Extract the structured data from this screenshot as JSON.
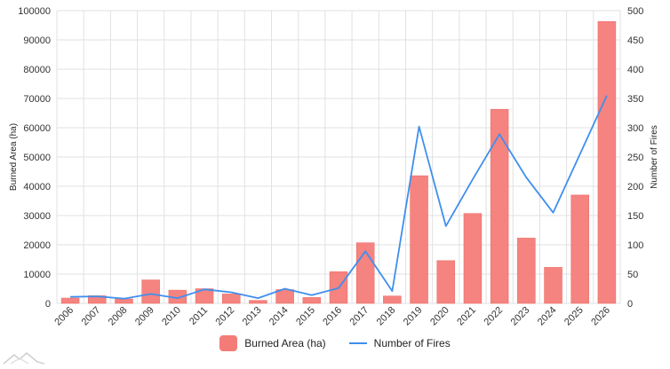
{
  "chart_data": {
    "type": "bar",
    "categories": [
      "2006",
      "2007",
      "2008",
      "2009",
      "2010",
      "2011",
      "2012",
      "2013",
      "2014",
      "2015",
      "2016",
      "2017",
      "2018",
      "2019",
      "2020",
      "2021",
      "2022",
      "2023",
      "2024",
      "2025",
      "2026"
    ],
    "series": [
      {
        "name": "Burned Area (ha)",
        "kind": "bar",
        "axis": "left",
        "color": "#f47c78",
        "values": [
          1800,
          2600,
          1500,
          8000,
          4500,
          5000,
          3200,
          1000,
          4700,
          2000,
          10800,
          20700,
          2500,
          43600,
          14600,
          30700,
          66300,
          22300,
          12300,
          37000,
          96300
        ]
      },
      {
        "name": "Number of Fires",
        "kind": "line",
        "axis": "right",
        "color": "#3f8fee",
        "values": [
          11,
          12,
          8,
          16,
          9,
          24,
          19,
          9,
          25,
          14,
          26,
          89,
          21,
          302,
          132,
          212,
          289,
          215,
          155,
          255,
          355
        ]
      }
    ],
    "ylabel": "Burned Area (ha)",
    "y2label": "Number of Fires",
    "ylim": [
      0,
      100000
    ],
    "y2lim": [
      0,
      500
    ],
    "yticks": [
      "0",
      "10000",
      "20000",
      "30000",
      "40000",
      "50000",
      "60000",
      "70000",
      "80000",
      "90000",
      "100000"
    ],
    "y2ticks": [
      "0",
      "50",
      "100",
      "150",
      "200",
      "250",
      "300",
      "350",
      "400",
      "450",
      "500"
    ],
    "grid": true,
    "legend": "bottom-center"
  },
  "legend": {
    "bar_label": "Burned Area (ha)",
    "line_label": "Number of Fires",
    "bar_color": "#f47c78",
    "line_color": "#3f8fee"
  },
  "watermark_icon": "mountain-logo-icon"
}
